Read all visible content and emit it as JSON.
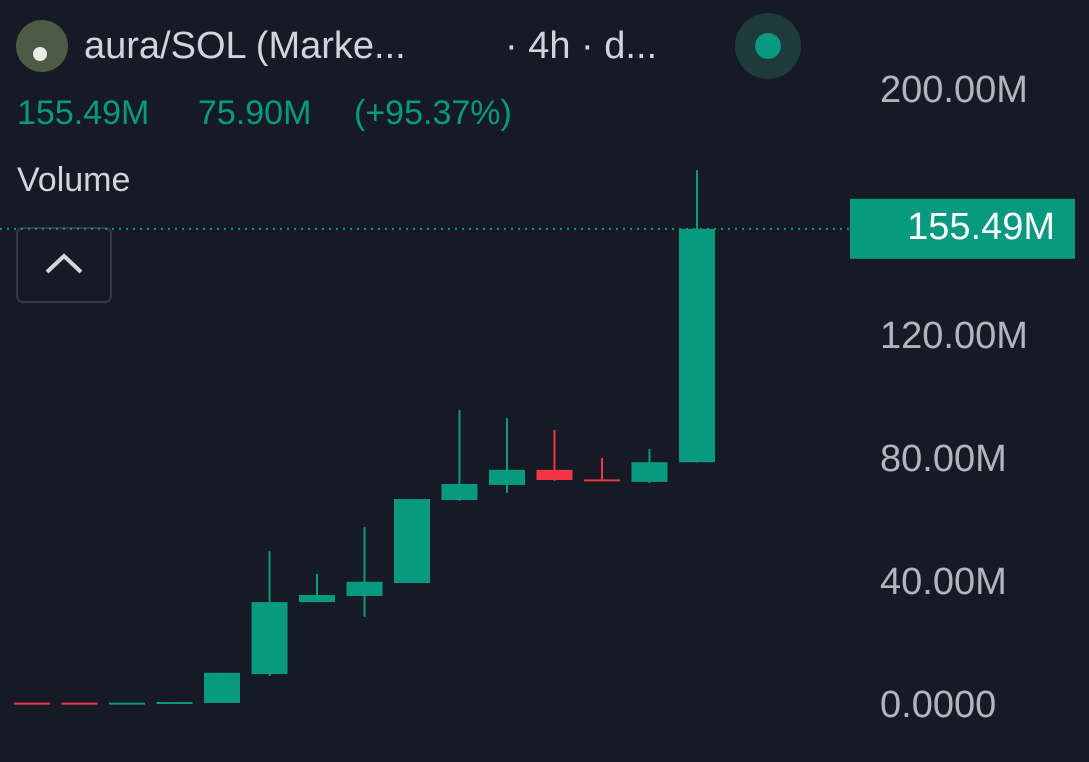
{
  "chart_data": {
    "type": "candlestick",
    "title": "aura/SOL (Marke...",
    "interval": "· 4h · d...",
    "subtitle": "Volume",
    "legend_values": [
      "155.49M",
      "75.90M",
      "(+95.37%)"
    ],
    "current_value_label": "155.49M",
    "categories": [
      null,
      null,
      null,
      null,
      null,
      null,
      null,
      null,
      null,
      null,
      null,
      null,
      null,
      null,
      null
    ],
    "open": [
      1.4,
      1.4,
      1.2,
      1.3,
      1.3,
      10.7,
      34.1,
      36.1,
      40.3,
      67.3,
      72.2,
      77.1,
      74.0,
      73.2,
      79.59
    ],
    "high": [
      1.4,
      1.4,
      1.4,
      1.6,
      11.1,
      50.7,
      43.3,
      58.5,
      67.6,
      96.6,
      94.0,
      90.1,
      81.0,
      83.9,
      174.6
    ],
    "low": [
      1.3,
      1.3,
      1.2,
      1.3,
      1.3,
      10.1,
      34.1,
      29.3,
      40.3,
      67.0,
      69.6,
      73.5,
      73.8,
      72.8,
      79.5
    ],
    "close": [
      1.3,
      1.3,
      1.4,
      1.6,
      11.1,
      34.1,
      36.4,
      40.7,
      67.6,
      72.5,
      77.1,
      73.8,
      73.8,
      79.59,
      155.49
    ],
    "up_color": "#089981",
    "down_color": "#f23645",
    "ylim": [
      -17.9,
      229.9
    ],
    "yticks": [
      {
        "value": 0,
        "label": "0.0000"
      },
      {
        "value": 40,
        "label": "40.00M"
      },
      {
        "value": 80,
        "label": "80.00M"
      },
      {
        "value": 120,
        "label": "120.00M"
      },
      {
        "value": 200,
        "label": "200.00M"
      }
    ]
  }
}
